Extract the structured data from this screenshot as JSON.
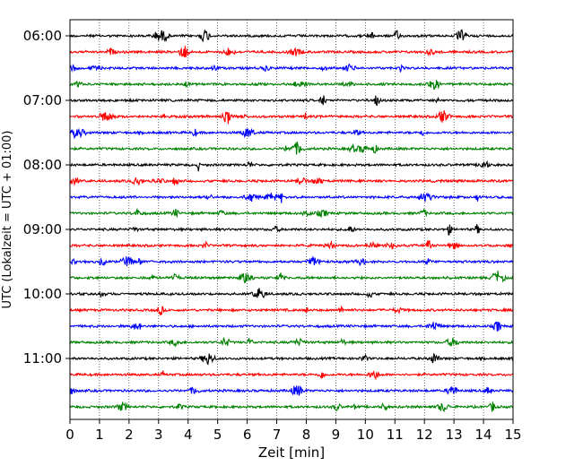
{
  "chart_data": {
    "type": "line",
    "subtype": "helicorder-seismogram",
    "xlabel": "Zeit  [min]",
    "ylabel": "UTC (Lokalzeit = UTC + 01:00)",
    "xlim": [
      0,
      15
    ],
    "x_ticks": [
      0,
      1,
      2,
      3,
      4,
      5,
      6,
      7,
      8,
      9,
      10,
      11,
      12,
      13,
      14,
      15
    ],
    "grid": "vertical dotted lines at each minute",
    "y_tick_labels": [
      "06:00",
      "07:00",
      "08:00",
      "09:00",
      "10:00",
      "11:00"
    ],
    "y_tick_trace_index": [
      0,
      4,
      8,
      12,
      16,
      20
    ],
    "trace_colors": [
      "#000000",
      "#ff0000",
      "#0000ff",
      "#008000"
    ],
    "traces_start": "06:00",
    "trace_interval_minutes": 15,
    "trace_count": 24
  }
}
